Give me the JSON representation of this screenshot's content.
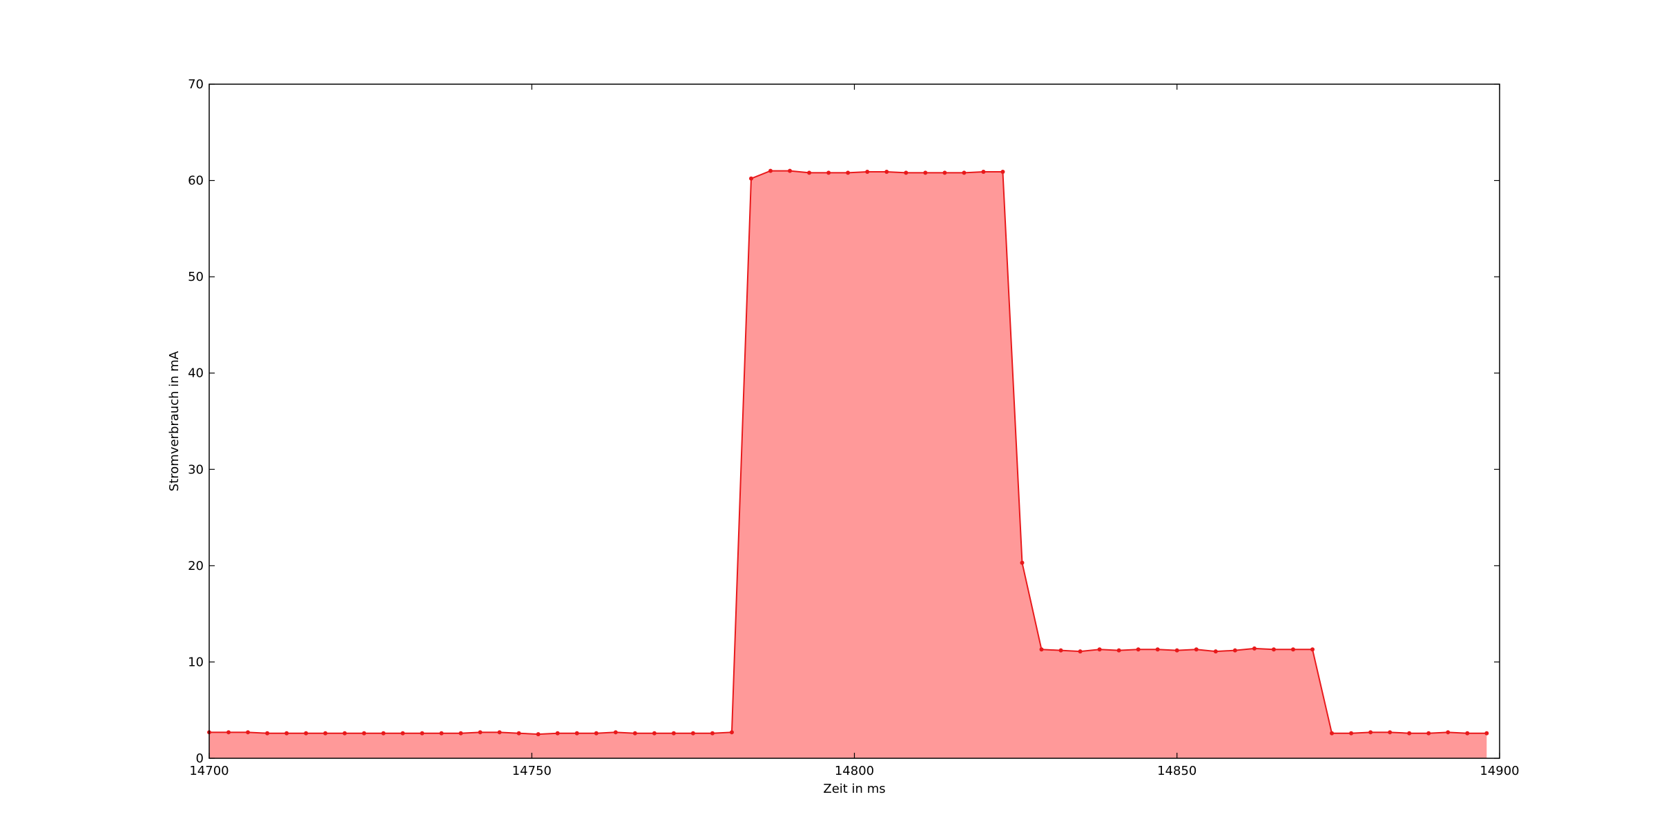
{
  "chart_data": {
    "type": "area",
    "title": "",
    "xlabel": "Zeit in ms",
    "ylabel": "Stromverbrauch in mA",
    "xlim": [
      14700,
      14900
    ],
    "ylim": [
      0,
      70
    ],
    "xticks": [
      "14700",
      "14750",
      "14800",
      "14850",
      "14900"
    ],
    "yticks": [
      "0",
      "10",
      "20",
      "30",
      "40",
      "50",
      "60",
      "70"
    ],
    "grid": false,
    "legend": "none",
    "line_color": "#e8191b",
    "fill_color": "#ff9999",
    "series": [
      {
        "x": [
          14700,
          14703,
          14706,
          14709,
          14712,
          14715,
          14718,
          14721,
          14724,
          14727,
          14730,
          14733,
          14736,
          14739,
          14742,
          14745,
          14748,
          14751,
          14754,
          14757,
          14760,
          14763,
          14766,
          14769,
          14772,
          14775,
          14778,
          14781,
          14784,
          14787,
          14790,
          14793,
          14796,
          14799,
          14802,
          14805,
          14808,
          14811,
          14814,
          14817,
          14820,
          14823,
          14826,
          14829,
          14832,
          14835,
          14838,
          14841,
          14844,
          14847,
          14850,
          14853,
          14856,
          14859,
          14862,
          14865,
          14868,
          14871,
          14874,
          14877,
          14880,
          14883,
          14886,
          14889,
          14892,
          14895,
          14898
        ],
        "values": [
          2.7,
          2.7,
          2.7,
          2.6,
          2.6,
          2.6,
          2.6,
          2.6,
          2.6,
          2.6,
          2.6,
          2.6,
          2.6,
          2.6,
          2.7,
          2.7,
          2.6,
          2.5,
          2.6,
          2.6,
          2.6,
          2.7,
          2.6,
          2.6,
          2.6,
          2.6,
          2.6,
          2.7,
          60.2,
          61.0,
          61.0,
          60.8,
          60.8,
          60.8,
          60.9,
          60.9,
          60.8,
          60.8,
          60.8,
          60.8,
          60.9,
          60.9,
          20.3,
          11.3,
          11.2,
          11.1,
          11.3,
          11.2,
          11.3,
          11.3,
          11.2,
          11.3,
          11.1,
          11.2,
          11.4,
          11.3,
          11.3,
          11.3,
          2.6,
          2.6,
          2.7,
          2.7,
          2.6,
          2.6,
          2.7,
          2.6,
          2.6
        ]
      }
    ]
  }
}
